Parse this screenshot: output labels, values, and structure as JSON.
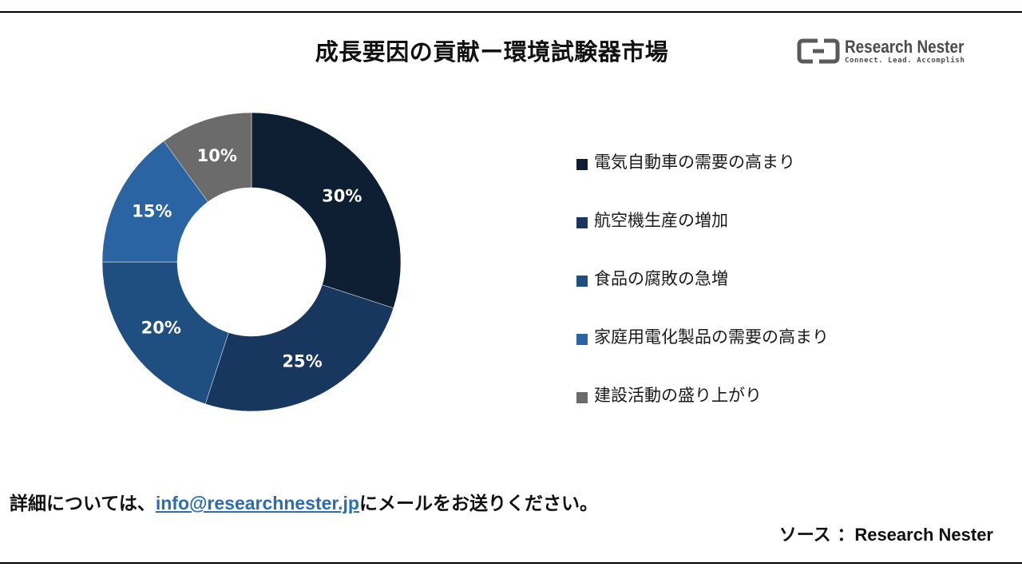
{
  "title": "成長要因の貢献ー環境試験器市場",
  "logo": {
    "name": "Research Nester",
    "tagline": "Connect. Lead. Accomplish"
  },
  "chart_data": {
    "type": "pie",
    "variant": "donut",
    "categories": [
      "電気自動車の需要の高まり",
      "航空機生産の増加",
      "食品の腐敗の急増",
      "家庭用電化製品の需要の高まり",
      "建設活動の盛り上がり"
    ],
    "values": [
      30,
      25,
      20,
      15,
      10
    ],
    "data_labels": [
      "30%",
      "25%",
      "20%",
      "15%",
      "10%"
    ],
    "colors": [
      "#0e1f33",
      "#17375e",
      "#1f4e80",
      "#2a64a3",
      "#6b6b6b"
    ],
    "legend_position": "right"
  },
  "footer": {
    "prefix": "詳細については、",
    "email": "info@researchnester.jp",
    "suffix": "にメールをお送りください。"
  },
  "source": {
    "label": "ソース ：",
    "name": "Research Nester"
  }
}
